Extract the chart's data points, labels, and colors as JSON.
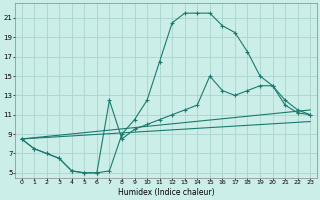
{
  "xlabel": "Humidex (Indice chaleur)",
  "bg_color": "#cceee8",
  "grid_color": "#aad4ce",
  "line_color": "#1a7a6e",
  "xlim": [
    -0.5,
    23.5
  ],
  "ylim": [
    4.5,
    22.5
  ],
  "yticks": [
    5,
    7,
    9,
    11,
    13,
    15,
    17,
    19,
    21
  ],
  "xticks": [
    0,
    1,
    2,
    3,
    4,
    5,
    6,
    7,
    8,
    9,
    10,
    11,
    12,
    13,
    14,
    15,
    16,
    17,
    18,
    19,
    20,
    21,
    22,
    23
  ],
  "curve1_x": [
    0,
    1,
    2,
    3,
    4,
    5,
    6,
    7,
    8,
    9,
    10,
    11,
    12,
    13,
    14,
    15,
    16,
    17,
    18,
    19,
    20,
    21,
    22,
    23
  ],
  "curve1_y": [
    8.5,
    7.5,
    7.0,
    6.5,
    5.2,
    5.0,
    5.0,
    5.2,
    9.0,
    10.5,
    12.5,
    16.5,
    20.5,
    21.5,
    21.5,
    21.5,
    20.2,
    19.5,
    17.5,
    15.0,
    14.0,
    12.0,
    11.2,
    11.0
  ],
  "curve2_x": [
    0,
    1,
    2,
    3,
    4,
    5,
    6,
    7,
    8,
    9,
    10,
    11,
    12,
    13,
    14,
    15,
    16,
    17,
    18,
    19,
    20,
    21,
    22,
    23
  ],
  "curve2_y": [
    8.5,
    7.5,
    7.0,
    6.5,
    5.2,
    5.0,
    5.0,
    12.5,
    8.5,
    9.5,
    10.0,
    10.5,
    11.0,
    11.5,
    12.0,
    15.0,
    13.5,
    13.0,
    13.5,
    14.0,
    14.0,
    12.5,
    11.5,
    11.0
  ],
  "line1_x": [
    0,
    23
  ],
  "line1_y": [
    8.5,
    10.3
  ],
  "line2_x": [
    0,
    23
  ],
  "line2_y": [
    8.5,
    11.5
  ]
}
